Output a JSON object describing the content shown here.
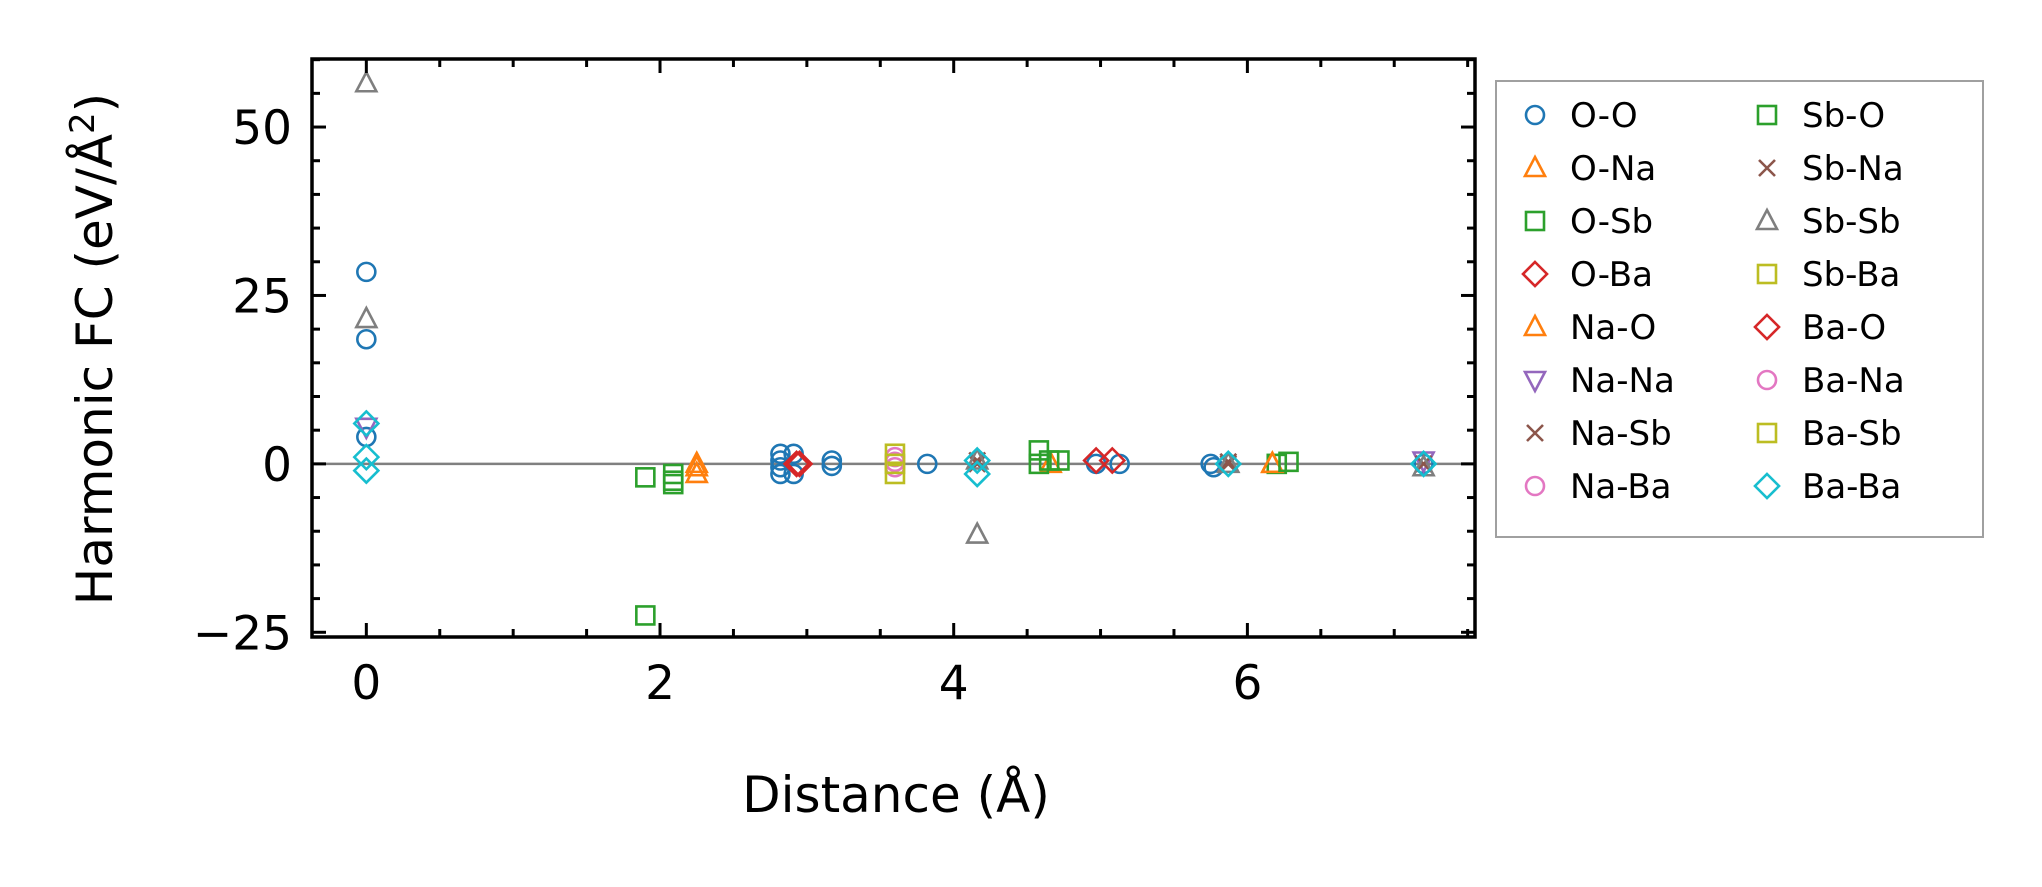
{
  "chart_data": {
    "type": "scatter",
    "title": "",
    "xlabel": "Distance (Å)",
    "ylabel_prefix": "Harmonic FC (eV/Å",
    "ylabel_sup": "2",
    "ylabel_suffix": ")",
    "xlim": [
      -0.37,
      7.55
    ],
    "ylim": [
      -25.7,
      60.1
    ],
    "xticks": [
      0,
      2,
      4,
      6
    ],
    "xtick_labels": [
      "0",
      "2",
      "4",
      "6"
    ],
    "yticks": [
      50,
      25,
      0,
      -25
    ],
    "ytick_labels": [
      "50",
      "25",
      "0",
      "−25"
    ],
    "reference_line_y": 0,
    "grid": false,
    "legend_placement": "outside-right",
    "series": [
      {
        "name": "O-O",
        "color": "#1f77b4",
        "marker": "circle",
        "points": [
          [
            0,
            28.5
          ],
          [
            0,
            18.5
          ],
          [
            0,
            4
          ],
          [
            2.82,
            1.5
          ],
          [
            2.82,
            0.5
          ],
          [
            2.82,
            -0.5
          ],
          [
            2.82,
            -1.5
          ],
          [
            2.91,
            1.5
          ],
          [
            2.91,
            -1.5
          ],
          [
            3.17,
            0.5
          ],
          [
            3.17,
            -0.3
          ],
          [
            3.82,
            0
          ],
          [
            4.97,
            0
          ],
          [
            5.13,
            0
          ],
          [
            5.75,
            0
          ],
          [
            5.77,
            -0.5
          ],
          [
            7.2,
            0
          ]
        ]
      },
      {
        "name": "O-Na",
        "color": "#ff7f0e",
        "marker": "triangle-up",
        "points": [
          [
            2.25,
            0
          ],
          [
            2.25,
            -1.5
          ],
          [
            4.66,
            0
          ],
          [
            6.17,
            0
          ]
        ]
      },
      {
        "name": "O-Sb",
        "color": "#2ca02c",
        "marker": "square",
        "points": [
          [
            1.9,
            -2
          ],
          [
            1.9,
            -22.5
          ],
          [
            2.09,
            -1.5
          ],
          [
            2.09,
            -3
          ],
          [
            4.58,
            2
          ],
          [
            4.58,
            0
          ],
          [
            4.65,
            0.5
          ],
          [
            6.2,
            0
          ]
        ]
      },
      {
        "name": "O-Ba",
        "color": "#d62728",
        "marker": "diamond",
        "points": [
          [
            2.93,
            0
          ],
          [
            4.97,
            0.5
          ]
        ]
      },
      {
        "name": "Na-O",
        "color": "#ff7f0e",
        "marker": "triangle-up",
        "points": [
          [
            2.25,
            -0.5
          ],
          [
            6.17,
            0
          ]
        ]
      },
      {
        "name": "Na-Na",
        "color": "#9467bd",
        "marker": "triangle-down",
        "points": [
          [
            0,
            5.5
          ],
          [
            7.2,
            0.5
          ]
        ]
      },
      {
        "name": "Na-Sb",
        "color": "#8c564b",
        "marker": "x",
        "points": [
          [
            4.16,
            0.5
          ],
          [
            5.87,
            0
          ],
          [
            7.2,
            0
          ]
        ]
      },
      {
        "name": "Na-Ba",
        "color": "#e377c2",
        "marker": "circle",
        "points": [
          [
            3.6,
            1
          ],
          [
            3.6,
            -0.5
          ]
        ]
      },
      {
        "name": "Sb-O",
        "color": "#2ca02c",
        "marker": "square",
        "points": [
          [
            2.09,
            -2.5
          ],
          [
            4.72,
            0.5
          ],
          [
            6.28,
            0.3
          ]
        ]
      },
      {
        "name": "Sb-Na",
        "color": "#8c564b",
        "marker": "x",
        "points": [
          [
            4.16,
            0
          ],
          [
            5.87,
            0.3
          ]
        ]
      },
      {
        "name": "Sb-Sb",
        "color": "#7f7f7f",
        "marker": "triangle-up",
        "points": [
          [
            0,
            56.5
          ],
          [
            0,
            21.5
          ],
          [
            4.16,
            -10.5
          ],
          [
            4.16,
            0.5
          ],
          [
            5.87,
            0
          ],
          [
            7.2,
            -0.5
          ]
        ]
      },
      {
        "name": "Sb-Ba",
        "color": "#bcbd22",
        "marker": "square",
        "points": [
          [
            3.6,
            1.5
          ],
          [
            3.6,
            -1.5
          ]
        ]
      },
      {
        "name": "Ba-O",
        "color": "#d62728",
        "marker": "diamond",
        "points": [
          [
            2.95,
            0
          ],
          [
            5.08,
            0.5
          ]
        ]
      },
      {
        "name": "Ba-Na",
        "color": "#e377c2",
        "marker": "circle",
        "points": [
          [
            3.6,
            0.3
          ]
        ]
      },
      {
        "name": "Ba-Sb",
        "color": "#bcbd22",
        "marker": "square",
        "points": [
          [
            3.6,
            0
          ]
        ]
      },
      {
        "name": "Ba-Ba",
        "color": "#17becf",
        "marker": "diamond",
        "points": [
          [
            0,
            6
          ],
          [
            0,
            1
          ],
          [
            0,
            -1
          ],
          [
            4.16,
            0.5
          ],
          [
            4.16,
            -1.5
          ],
          [
            5.87,
            0
          ],
          [
            7.2,
            0
          ]
        ]
      }
    ]
  }
}
